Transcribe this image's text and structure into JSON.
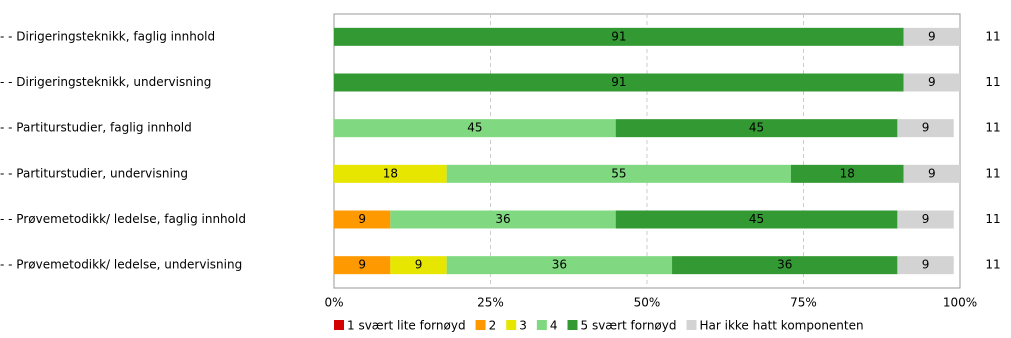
{
  "chart_data": {
    "type": "stacked-bar-horizontal",
    "categories": [
      "- - Dirigeringsteknikk, faglig innhold",
      "- - Dirigeringsteknikk, undervisning",
      "- - Partiturstudier, faglig innhold",
      "- - Partiturstudier, undervisning",
      "- - Prøvemetodikk/ ledelse, faglig innhold",
      "- - Prøvemetodikk/ ledelse, undervisning"
    ],
    "series": [
      {
        "name": "1 svært lite fornøyd",
        "color": "#d40000",
        "values": [
          0,
          0,
          0,
          0,
          0,
          0
        ]
      },
      {
        "name": "2",
        "color": "#ff9900",
        "values": [
          0,
          0,
          0,
          0,
          9,
          9
        ]
      },
      {
        "name": "3",
        "color": "#e6e600",
        "values": [
          0,
          0,
          0,
          18,
          0,
          9
        ]
      },
      {
        "name": "4",
        "color": "#80d880",
        "values": [
          0,
          0,
          45,
          55,
          36,
          36
        ]
      },
      {
        "name": "5 svært fornøyd",
        "color": "#339933",
        "values": [
          91,
          91,
          45,
          18,
          45,
          36
        ]
      },
      {
        "name": "Har ikke hatt komponenten",
        "color": "#d3d3d3",
        "values": [
          9,
          9,
          9,
          9,
          9,
          9
        ]
      }
    ],
    "n": [
      11,
      11,
      11,
      11,
      11,
      11
    ],
    "xlim": [
      0,
      100
    ],
    "xticks": [
      {
        "value": 0,
        "label": "0%"
      },
      {
        "value": 25,
        "label": "25%"
      },
      {
        "value": 50,
        "label": "50%"
      },
      {
        "value": 75,
        "label": "75%"
      },
      {
        "value": 100,
        "label": "100%"
      }
    ],
    "grid": true
  }
}
